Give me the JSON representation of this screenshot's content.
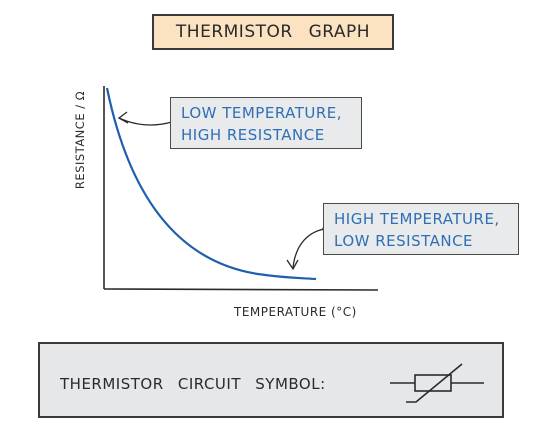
{
  "title": "THERMISTOR GRAPH",
  "axes": {
    "y_label": "RESISTANCE / Ω",
    "x_label": "TEMPERATURE (°C)"
  },
  "callouts": {
    "low_temp": [
      "LOW TEMPERATURE,",
      "HIGH RESISTANCE"
    ],
    "high_temp": [
      "HIGH TEMPERATURE,",
      "LOW RESISTANCE"
    ]
  },
  "symbol_panel": {
    "label": "THERMISTOR CIRCUIT SYMBOL:"
  },
  "colors": {
    "curve": "#1f5fae",
    "callout_text": "#2f6fb6",
    "title_fill": "#fbe3c2",
    "panel_fill": "#e6e7e9"
  }
}
